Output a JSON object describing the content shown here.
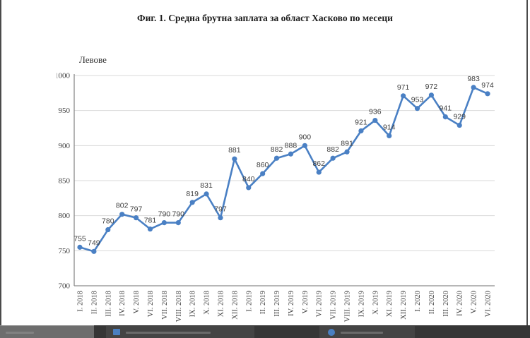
{
  "page": {
    "kind": "document-page-with-chart"
  },
  "chart_data": {
    "type": "line",
    "title": "Фиг. 1. Средна брутна заплата за област Хасково по месеци",
    "xlabel": "",
    "ylabel": "Левове",
    "categories": [
      "I. 2018",
      "II. 2018",
      "III. 2018",
      "IV. 2018",
      "V. 2018",
      "VI. 2018",
      "VII. 2018",
      "VIII. 2018",
      "IX. 2018",
      "X. 2018",
      "XI. 2018",
      "XII. 2018",
      "I. 2019",
      "II. 2019",
      "III. 2019",
      "IV. 2019",
      "V. 2019",
      "VI. 2019",
      "VII. 2019",
      "VIII. 2019",
      "IX. 2019",
      "X. 2019",
      "XI. 2019",
      "XII. 2019",
      "I. 2020",
      "II. 2020",
      "III. 2020",
      "IV. 2020",
      "V. 2020",
      "VI. 2020"
    ],
    "values": [
      755,
      749,
      780,
      802,
      797,
      781,
      790,
      790,
      819,
      831,
      797,
      881,
      840,
      860,
      882,
      888,
      900,
      862,
      882,
      891,
      921,
      936,
      914,
      971,
      953,
      972,
      941,
      929,
      983,
      974
    ],
    "ylim": [
      700,
      1000
    ],
    "yticks": [
      700,
      750,
      800,
      850,
      900,
      950,
      1000
    ],
    "grid": true,
    "legend": "none",
    "marker": "circle",
    "data_labels": true,
    "colors": {
      "line": "#4A80C4",
      "marker": "#4A80C4",
      "gridline": "#D9D9D9",
      "axis": "#8C8C8C",
      "tick_label": "#3F3F3F",
      "data_label": "#404040",
      "title": "#1C1C1C"
    }
  },
  "taskbar": {
    "visible": true,
    "note_illegible_text": true,
    "colors": {
      "bar": "#363636",
      "left_segment": "#6D6D6D",
      "app_icon": "#4A7FC1"
    }
  }
}
